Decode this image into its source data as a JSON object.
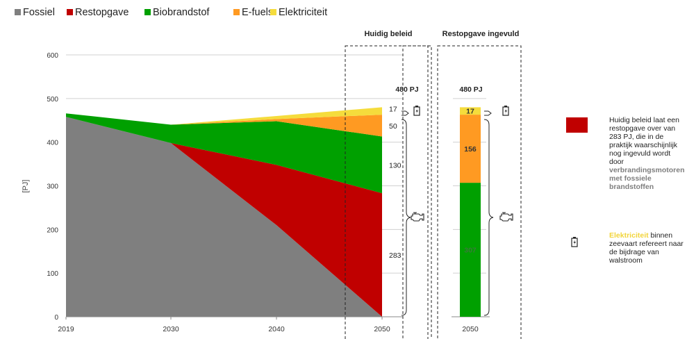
{
  "legend": [
    {
      "name": "Fossiel",
      "color": "#7f7f7f"
    },
    {
      "name": "Restopgave",
      "color": "#c00000"
    },
    {
      "name": "Biobrandstof",
      "color": "#00a000"
    },
    {
      "name": "E-fuels",
      "color": "#ff9a22"
    },
    {
      "name": "Elektriciteit",
      "color": "#f5dc3c"
    }
  ],
  "chart_data": [
    {
      "type": "area",
      "stacked": true,
      "x": [
        "2019",
        "2030",
        "2040",
        "2050"
      ],
      "ylabel": "[PJ]",
      "ylim": [
        0,
        600
      ],
      "yticks": [
        "0",
        "100",
        "200",
        "300",
        "400",
        "500",
        "600"
      ],
      "grid": true,
      "legend_position": "top",
      "series": [
        {
          "name": "Fossiel",
          "color": "#7f7f7f",
          "values": [
            458,
            398,
            210,
            0
          ]
        },
        {
          "name": "Restopgave",
          "color": "#c00000",
          "values": [
            0,
            0,
            138,
            283
          ]
        },
        {
          "name": "Biobrandstof",
          "color": "#00a000",
          "values": [
            8,
            42,
            100,
            130
          ]
        },
        {
          "name": "E-fuels",
          "color": "#ff9a22",
          "values": [
            0,
            0,
            5,
            50
          ]
        },
        {
          "name": "Elektriciteit",
          "color": "#f5dc3c",
          "values": [
            0,
            0,
            7,
            17
          ]
        }
      ],
      "annotations": {
        "panel_title": "Huidig beleid",
        "total_label": "480 PJ",
        "segment_labels": [
          "17",
          "50",
          "130",
          "283"
        ]
      }
    },
    {
      "type": "bar",
      "stacked": true,
      "categories": [
        "2050"
      ],
      "ylim": [
        0,
        600
      ],
      "series": [
        {
          "name": "Biobrandstof",
          "color": "#00a000",
          "values": [
            307
          ]
        },
        {
          "name": "E-fuels",
          "color": "#ff9a22",
          "values": [
            156
          ]
        },
        {
          "name": "Elektriciteit",
          "color": "#f5dc3c",
          "values": [
            17
          ]
        }
      ],
      "annotations": {
        "panel_title": "Restopgave ingevuld",
        "total_label": "480 PJ",
        "segment_labels": [
          "307",
          "156",
          "17"
        ]
      }
    }
  ],
  "notes": {
    "note1_plain": "Huidig beleid laat een restopgave over van 283 PJ, die in de praktijk waarschijnlijk nog ingevuld wordt door",
    "note1_grey": "verbrandingsmotoren met fossiele brandstoffen",
    "note1_color": "#c00000",
    "note2_yellow": "Elektriciteit",
    "note2_plain": "binnen zeevaart refereert naar de bijdrage van walstroom"
  },
  "icons": {
    "battery": "battery-icon",
    "engine": "engine-icon"
  }
}
